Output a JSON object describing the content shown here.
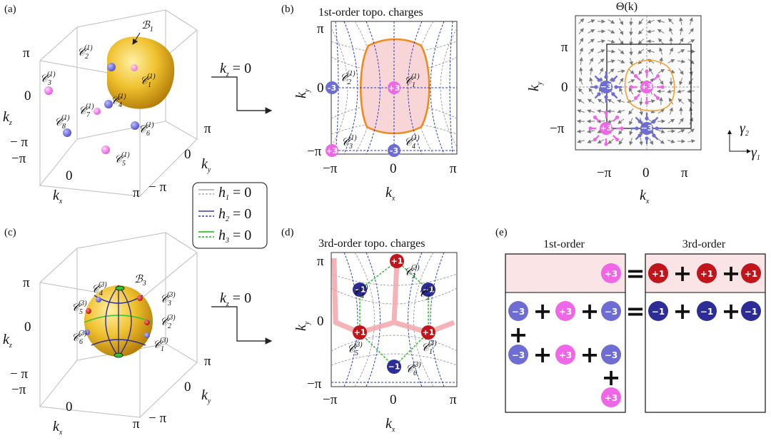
{
  "panels": {
    "a": "(a)",
    "b": "(b)",
    "c": "(c)",
    "d": "(d)",
    "e": "(e)"
  },
  "a": {
    "kx": "k",
    "kx_sub": "x",
    "ky": "k",
    "ky_sub": "y",
    "kz": "k",
    "kz_sub": "z",
    "t_pi": "π",
    "t_0": "0",
    "t_mpi": "− π",
    "t_mpi2": "−π",
    "surface_label": "ℬ",
    "surface_sub": "1",
    "kz_eq": "k",
    "kz_eq_sub": "z",
    "kz_eq_val": " = 0",
    "nodes": [
      {
        "label": "𝒞",
        "sub": "1",
        "sup": "(1)"
      },
      {
        "label": "𝒞",
        "sub": "2",
        "sup": "(1)"
      },
      {
        "label": "𝒞",
        "sub": "3",
        "sup": "(1)"
      },
      {
        "label": "𝒞",
        "sub": "4",
        "sup": "(1)"
      },
      {
        "label": "𝒞",
        "sub": "5",
        "sup": "(1)"
      },
      {
        "label": "𝒞",
        "sub": "6",
        "sup": "(1)"
      },
      {
        "label": "𝒞",
        "sub": "7",
        "sup": "(1)"
      },
      {
        "label": "𝒞",
        "sub": "8",
        "sup": "(1)"
      }
    ]
  },
  "legend": {
    "h1": "h",
    "h1_sub": "1",
    "h2": "h",
    "h2_sub": "2",
    "h3": "h",
    "h3_sub": "3",
    "eq": " = 0"
  },
  "b": {
    "title": "1st-order topo. charges",
    "kx": "k",
    "kx_sub": "x",
    "ky": "k",
    "ky_sub": "y",
    "t_pi": "π",
    "t_0": "0",
    "t_mpi": "−π",
    "charges": [
      "-3",
      "+3",
      "-3",
      "+3"
    ],
    "nodes": [
      {
        "label": "𝒞",
        "sub": "1",
        "sup": "(1)"
      },
      {
        "label": "𝒞",
        "sub": "2",
        "sup": "(1)"
      },
      {
        "label": "𝒞",
        "sub": "3",
        "sup": "(1)"
      },
      {
        "label": "𝒞",
        "sub": "4",
        "sup": "(1)"
      }
    ]
  },
  "theta": {
    "title": "Θ(k)",
    "kx": "k",
    "kx_sub": "x",
    "ky": "k",
    "ky_sub": "y",
    "t_pi": "π",
    "t_0": "0",
    "t_mpi": "−π",
    "g1": "γ",
    "g1_sub": "1",
    "g2": "γ",
    "g2_sub": "2",
    "charges": [
      "-3",
      "+3",
      "+3",
      "-3"
    ]
  },
  "c": {
    "surface_label": "ℬ",
    "surface_sub": "3",
    "kx": "k",
    "kx_sub": "x",
    "ky": "k",
    "ky_sub": "y",
    "kz": "k",
    "kz_sub": "z",
    "t_pi": "π",
    "t_0": "0",
    "t_mpi": "− π",
    "t_mpi2": "−π",
    "kz_eq": "k",
    "kz_eq_sub": "z",
    "kz_eq_val": " = 0",
    "nodes": [
      {
        "label": "𝒞",
        "sub": "1",
        "sup": "(3)"
      },
      {
        "label": "𝒞",
        "sub": "2",
        "sup": "(3)"
      },
      {
        "label": "𝒞",
        "sub": "3",
        "sup": "(3)"
      },
      {
        "label": "𝒞",
        "sub": "4",
        "sup": "(3)"
      },
      {
        "label": "𝒞",
        "sub": "5",
        "sup": "(3)"
      },
      {
        "label": "𝒞",
        "sub": "6",
        "sup": "(3)"
      }
    ]
  },
  "d": {
    "title": "3rd-order topo. charges",
    "kx": "k",
    "kx_sub": "x",
    "ky": "k",
    "ky_sub": "y",
    "t_pi": "π",
    "t_0": "0",
    "t_mpi": "−π",
    "charges": [
      "+1",
      "-1",
      "-1",
      "+1",
      "+1",
      "-1"
    ],
    "nodes": [
      {
        "label": "𝒞",
        "sub": "1",
        "sup": "(3)"
      },
      {
        "label": "𝒞",
        "sub": "2",
        "sup": "(3)"
      },
      {
        "label": "𝒞",
        "sub": "3",
        "sup": "(3)"
      },
      {
        "label": "𝒞",
        "sub": "4",
        "sup": "(3)"
      },
      {
        "label": "𝒞",
        "sub": "5",
        "sup": "(3)"
      },
      {
        "label": "𝒞",
        "sub": "6",
        "sup": "(3)"
      }
    ]
  },
  "e": {
    "head1": "1st-order",
    "head2": "3rd-order",
    "row1_left": [
      "+3"
    ],
    "row1_right": [
      "+1",
      "+1",
      "+1"
    ],
    "row2_left_a": [
      "-3",
      "+3",
      "-3"
    ],
    "row2_left_b": [
      "-3",
      "+3",
      "-3"
    ],
    "row2_left_c": [
      "+3"
    ],
    "row2_right": [
      "-1",
      "-1",
      "-1"
    ],
    "plus": "+",
    "equals": "="
  },
  "colors": {
    "orange": "#f08a1c",
    "pink_fill": "#f8d6d8",
    "blue_dash": "#2f3fb7",
    "gray_dash": "#9a9a9a",
    "green": "#33c233",
    "charge_m3": "#6d6dd4",
    "charge_p3": "#ef66e6",
    "charge_p1": "#c0161b",
    "charge_m1": "#2d2d97",
    "gold": "#e8b217"
  }
}
